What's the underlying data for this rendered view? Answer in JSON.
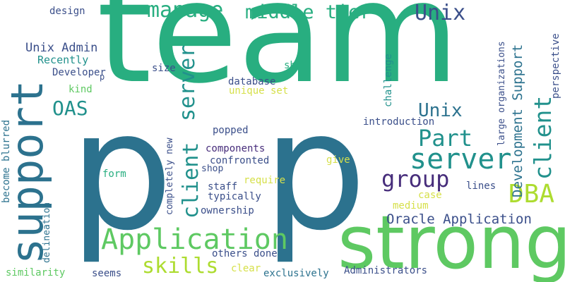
{
  "palette": {
    "dark_blue": "#3b4f8a",
    "steel_blue": "#2c728e",
    "teal": "#21918c",
    "green": "#28ae80",
    "light_green": "#5ec962",
    "lime": "#addc30",
    "yellow": "#d6e04a",
    "purple": "#472d7b"
  },
  "words": {
    "team": "team",
    "p1": "p",
    "p2": "p",
    "strong": "strong",
    "support": "support",
    "application": "Application",
    "server1": "server",
    "server2": "server",
    "client1": "client",
    "client2": "client",
    "manage": "manage",
    "middle_tier": "middle tier",
    "unix1": "Unix",
    "unix2": "Unix",
    "part": "Part",
    "dba": "DBA",
    "group": "group",
    "skills": "skills",
    "oas": "OAS",
    "oracle_application": "Oracle Application",
    "development_support": "Development Support",
    "large_organizations": "large organizations",
    "perspective": "perspective",
    "design": "design",
    "unix_admin": "Unix Admin",
    "recently": "Recently",
    "developer": "Developer",
    "kind": "kind",
    "p_small": "p",
    "size": "size",
    "show": "show",
    "database": "database",
    "unique_set": "unique set",
    "challenge": "challenge",
    "introduction": "introduction",
    "become_blurred": "become blurred",
    "completely_new": "completely new",
    "popped": "popped",
    "components": "components",
    "confronted": "confronted",
    "shop": "shop",
    "give": "give",
    "form": "form",
    "require": "require",
    "staff": "staff",
    "typically": "typically",
    "ownership": "ownership",
    "lines": "lines",
    "case": "case",
    "medium": "medium",
    "delineation": "delineation",
    "similarity": "similarity",
    "seems": "seems",
    "others_done": "others done",
    "clear": "clear",
    "exclusively": "exclusively",
    "administrators": "Administrators"
  }
}
